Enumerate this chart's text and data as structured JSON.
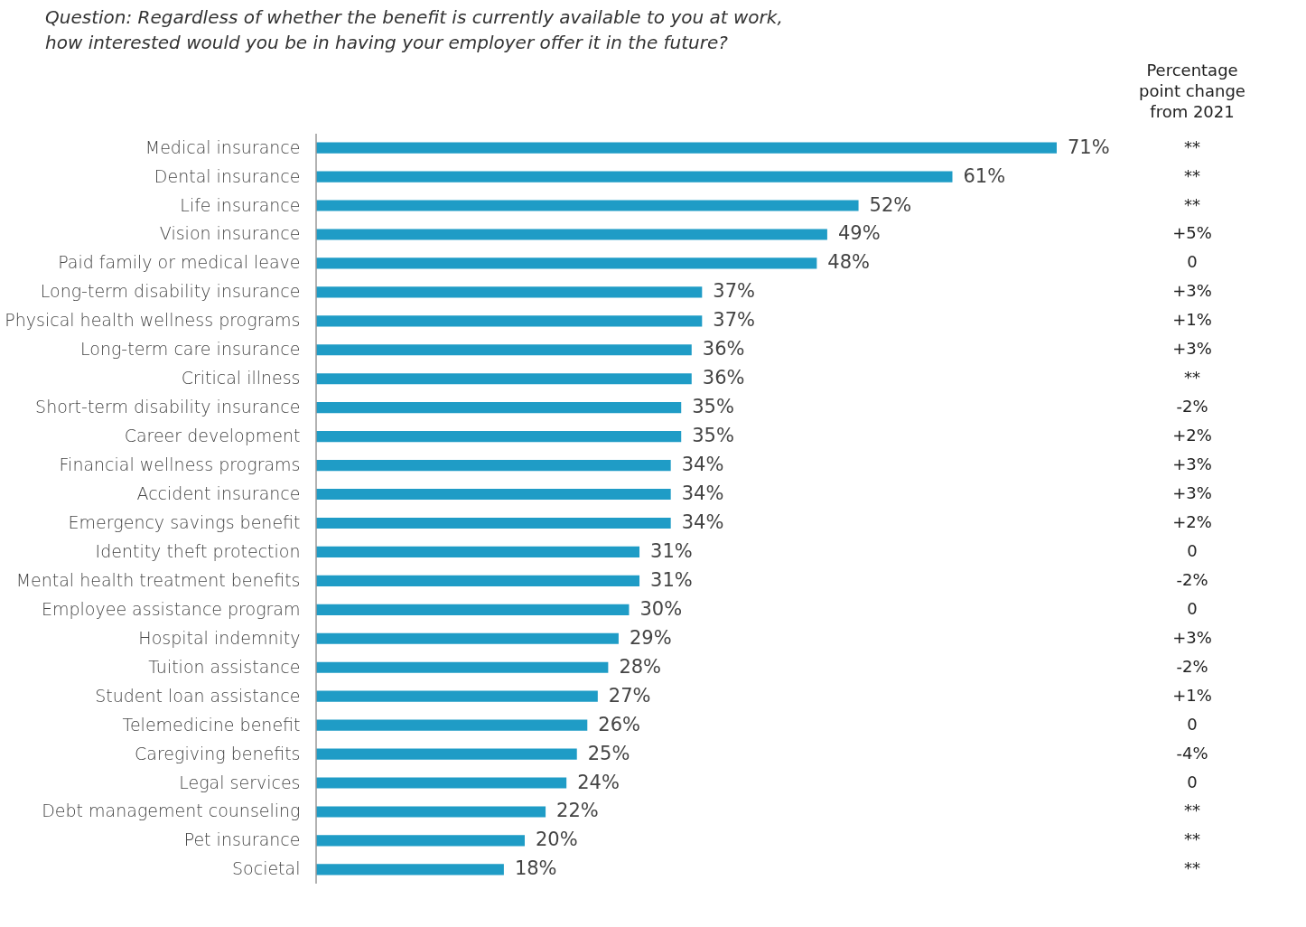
{
  "chart_data": {
    "type": "bar",
    "orientation": "horizontal",
    "title": "Question: Regardless of whether the benefit is currently available to you at work, how interested would you be in having your employer offer it in the future?",
    "categories": [
      "Medical insurance",
      "Dental insurance",
      "Life insurance",
      "Vision insurance",
      "Paid family or medical leave",
      "Long-term disability insurance",
      "Physical health wellness programs",
      "Long-term care insurance",
      "Critical illness",
      "Short-term disability insurance",
      "Career development",
      "Financial wellness programs",
      "Accident insurance",
      "Emergency savings benefit",
      "Identity theft protection",
      "Mental health treatment benefits",
      "Employee assistance program",
      "Hospital indemnity",
      "Tuition assistance",
      "Student loan assistance",
      "Telemedicine benefit",
      "Caregiving benefits",
      "Legal services",
      "Debt management counseling",
      "Pet insurance",
      "Societal"
    ],
    "values": [
      71,
      61,
      52,
      49,
      48,
      37,
      37,
      36,
      36,
      35,
      35,
      34,
      34,
      34,
      31,
      31,
      30,
      29,
      28,
      27,
      26,
      25,
      24,
      22,
      20,
      18
    ],
    "value_labels": [
      "71%",
      "61%",
      "52%",
      "49%",
      "48%",
      "37%",
      "37%",
      "36%",
      "36%",
      "35%",
      "35%",
      "34%",
      "34%",
      "34%",
      "31%",
      "31%",
      "30%",
      "29%",
      "28%",
      "27%",
      "26%",
      "25%",
      "24%",
      "22%",
      "20%",
      "18%"
    ],
    "color": "#1f9cc6",
    "annotations": [
      "Percentage point change from 2021",
      "**",
      "**",
      "**",
      "+5%",
      "0",
      "+3%",
      "+1%",
      "+3%",
      "**",
      "-2%",
      "+2%",
      "+3%",
      "+3%",
      "+2%",
      "0",
      "-2%",
      "0",
      "+3%",
      "-2%",
      "+1%",
      "0",
      "-4%",
      "0",
      "**",
      "**",
      "**"
    ]
  }
}
